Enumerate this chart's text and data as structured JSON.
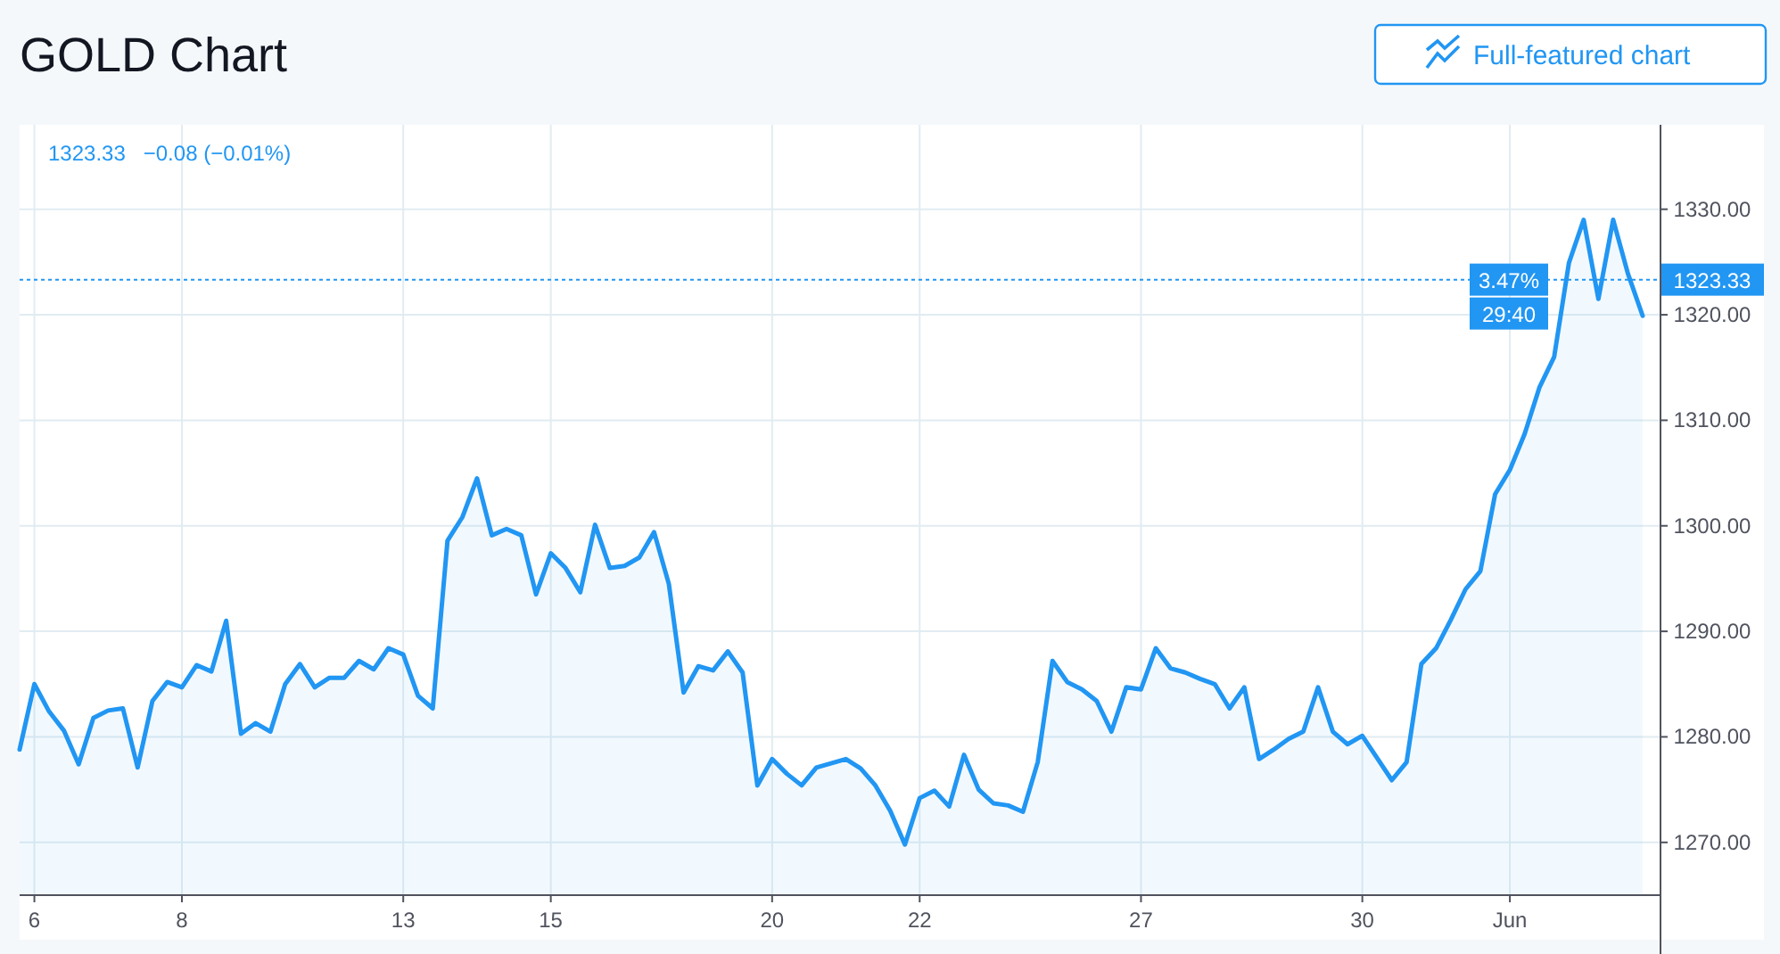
{
  "chart_data": {
    "type": "area",
    "title": "GOLD Chart",
    "annotations": [
      "Full-featured chart",
      "1323.33   −0.08 (−0.01%)",
      "3.47%",
      "29:40"
    ],
    "categories": [
      null,
      "6",
      null,
      null,
      null,
      null,
      null,
      null,
      null,
      null,
      null,
      "8",
      null,
      null,
      null,
      null,
      null,
      null,
      null,
      null,
      null,
      null,
      null,
      null,
      null,
      null,
      "13",
      null,
      null,
      null,
      null,
      null,
      null,
      null,
      null,
      null,
      "15",
      null,
      null,
      null,
      null,
      null,
      null,
      null,
      null,
      null,
      null,
      null,
      null,
      null,
      null,
      "20",
      null,
      null,
      null,
      null,
      null,
      null,
      null,
      null,
      null,
      "22",
      null,
      null,
      null,
      null,
      null,
      null,
      null,
      null,
      null,
      null,
      null,
      null,
      null,
      null,
      "27",
      null,
      null,
      null,
      null,
      null,
      null,
      null,
      null,
      null,
      null,
      null,
      null,
      null,
      null,
      "30",
      null,
      null,
      null,
      null,
      null,
      null,
      null,
      null,
      null,
      "Jun",
      null,
      null,
      null,
      null,
      null,
      null,
      null,
      null,
      null
    ],
    "series": [
      {
        "color": "#2196f3",
        "values": [
          1278.8,
          1285.0,
          1282.4,
          1280.6,
          1277.4,
          1281.8,
          1282.5,
          1282.7,
          1277.1,
          1283.4,
          1285.2,
          1284.7,
          1286.8,
          1286.2,
          1291.0,
          1280.3,
          1281.3,
          1280.5,
          1285.0,
          1286.9,
          1284.7,
          1285.6,
          1285.6,
          1287.2,
          1286.4,
          1288.4,
          1287.8,
          1283.9,
          1282.7,
          1298.6,
          1300.8,
          1304.5,
          1299.1,
          1299.7,
          1299.1,
          1293.5,
          1297.4,
          1296.0,
          1293.7,
          1300.1,
          1296.0,
          1296.2,
          1297.0,
          1299.4,
          1294.5,
          1284.2,
          1286.7,
          1286.3,
          1288.1,
          1286.1,
          1275.4,
          1277.9,
          1276.5,
          1275.4,
          1277.1,
          1277.5,
          1277.9,
          1277.0,
          1275.4,
          1273.0,
          1269.8,
          1274.2,
          1274.9,
          1273.4,
          1278.3,
          1275.0,
          1273.7,
          1273.5,
          1272.9,
          1277.6,
          1287.2,
          1285.2,
          1284.5,
          1283.4,
          1280.5,
          1284.7,
          1284.5,
          1288.4,
          1286.5,
          1286.1,
          1285.5,
          1285.0,
          1282.7,
          1284.7,
          1277.9,
          1278.8,
          1279.8,
          1280.5,
          1284.7,
          1280.5,
          1279.3,
          1280.1,
          1278.0,
          1275.9,
          1277.6,
          1286.9,
          1288.4,
          1291.1,
          1294.0,
          1295.7,
          1303.0,
          1305.3,
          1308.7,
          1313.1,
          1316.0,
          1324.9,
          1329.0,
          1321.5,
          1329.0,
          1323.9,
          1319.9
        ]
      }
    ],
    "ylim": [
      1265,
      1338
    ],
    "yticks": [
      {
        "value": 1270,
        "label": "1270.00"
      },
      {
        "value": 1280,
        "label": "1280.00"
      },
      {
        "value": 1290,
        "label": "1290.00"
      },
      {
        "value": 1300,
        "label": "1300.00"
      },
      {
        "value": 1310,
        "label": "1310.00"
      },
      {
        "value": 1320,
        "label": "1320.00"
      },
      {
        "value": 1330,
        "label": "1330.00"
      }
    ],
    "ref_lines": [
      {
        "axis": "y",
        "value": 1323.33,
        "label": "1323.33",
        "color": "#2196f3",
        "line_style": "dotted"
      }
    ],
    "grid": true
  }
}
